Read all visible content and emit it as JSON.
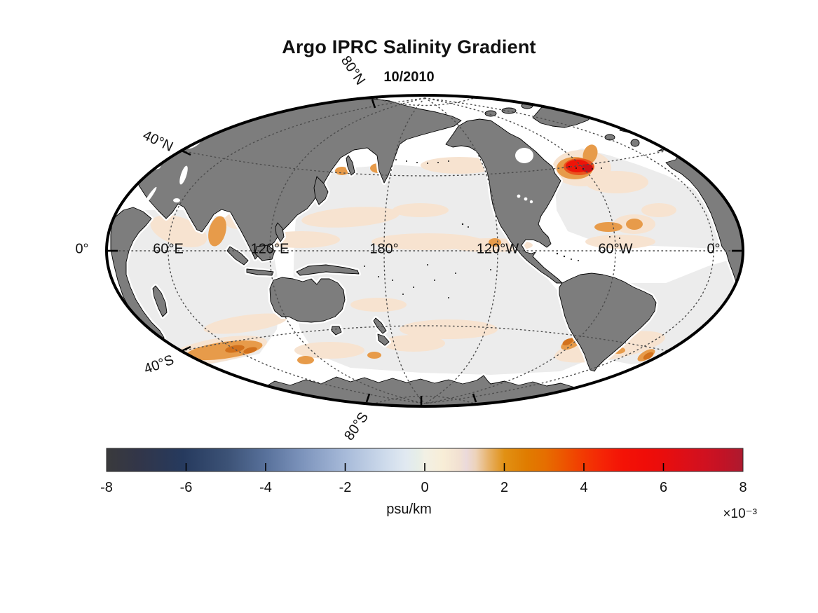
{
  "figure": {
    "title": "Argo IPRC Salinity Gradient",
    "subtitle": "10/2010",
    "background_color": "#ffffff"
  },
  "chart_data": {
    "type": "heatmap",
    "subtype": "global-map-ellipse-projection",
    "projection": "Hammer-style ellipse, Pacific-centered (~160°W), edges at ~20°E",
    "title": "Argo IPRC Salinity Gradient",
    "subtitle": "10/2010",
    "units": "psu/km",
    "value_scale_multiplier": "×10⁻³",
    "colorbar": {
      "orientation": "horizontal",
      "tick_labels": [
        "-8",
        "-6",
        "-4",
        "-2",
        "0",
        "2",
        "4",
        "6",
        "8"
      ],
      "range": [
        -0.008,
        0.008
      ],
      "colormap_stops": [
        {
          "value": -8,
          "color": "#3a3a3c"
        },
        {
          "value": -6,
          "color": "#263a5e"
        },
        {
          "value": -4,
          "color": "#58719b"
        },
        {
          "value": -2,
          "color": "#a7bad9"
        },
        {
          "value": -1,
          "color": "#cfdcec"
        },
        {
          "value": 0,
          "color": "#f2f0e5"
        },
        {
          "value": 1,
          "color": "#ebdadb"
        },
        {
          "value": 2,
          "color": "#e19114"
        },
        {
          "value": 4,
          "color": "#f23902"
        },
        {
          "value": 6,
          "color": "#e90d0d"
        },
        {
          "value": 8,
          "color": "#ad1a2f"
        }
      ]
    },
    "graticule": {
      "longitude_labels": [
        "60°E",
        "120°E",
        "180°",
        "120°W",
        "60°W",
        "0°"
      ],
      "latitude_labels": [
        "80°N",
        "40°N",
        "0°",
        "40°S",
        "80°S"
      ],
      "style": "dotted"
    },
    "land_color": "#7d7d7d",
    "ocean_near_zero_color": "#ececec",
    "no_data_color": "#ffffff",
    "notable_anomalies": [
      {
        "region": "Northwest Atlantic off Newfoundland",
        "sign": "positive",
        "approx_peak": "+6 to +8 ×10⁻³ psu/km"
      },
      {
        "region": "Southern Indian Ocean ~40-45°S arc",
        "sign": "positive",
        "approx_peak": "+2 to +4 ×10⁻³ psu/km"
      },
      {
        "region": "Brazil–Malvinas confluence (SW Atlantic)",
        "sign": "positive",
        "approx_peak": "+2 to +4 ×10⁻³ psu/km"
      },
      {
        "region": "Kuroshio extension east of Japan",
        "sign": "positive",
        "approx_peak": "+2 ×10⁻³ psu/km"
      },
      {
        "region": "Arabian Sea / west of India",
        "sign": "positive",
        "approx_peak": "+2 ×10⁻³ psu/km"
      },
      {
        "region": "Most open ocean",
        "sign": "near-zero",
        "approx_peak": "0 to +1 ×10⁻³ psu/km"
      }
    ],
    "legend_position": "bottom"
  }
}
